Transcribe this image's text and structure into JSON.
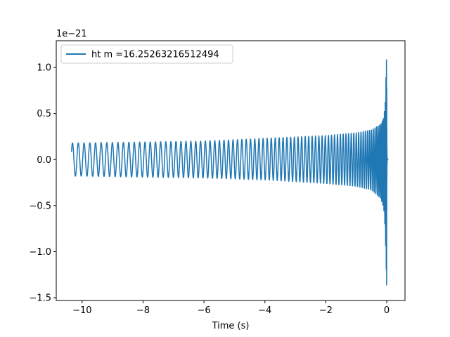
{
  "chart_data": {
    "type": "line",
    "title": "",
    "xlabel": "Time (s)",
    "ylabel": "",
    "y_scale_label": "1e−21",
    "xlim": [
      -10.85,
      0.6
    ],
    "ylim": [
      -1.53,
      1.29
    ],
    "x_ticks": [
      -10,
      -8,
      -6,
      -4,
      -2,
      0
    ],
    "x_tick_labels": [
      "−10",
      "−8",
      "−6",
      "−4",
      "−2",
      "0"
    ],
    "y_ticks": [
      -1.5,
      -1.0,
      -0.5,
      0.0,
      0.5,
      1.0
    ],
    "y_tick_labels": [
      "−1.5",
      "−1.0",
      "−0.5",
      "0.0",
      "0.5",
      "1.0"
    ],
    "legend_position": "upper-left",
    "grid": false,
    "series": [
      {
        "name": "ht m =16.25263216512494",
        "color": "#1f77b4",
        "x_start": -10.35,
        "x_merger": 0.0,
        "x_end": 0.05,
        "envelope_x": [
          -10.35,
          -10.0,
          -8.0,
          -6.0,
          -4.0,
          -2.0,
          -1.0,
          -0.5,
          -0.2,
          -0.1,
          -0.05,
          0.0
        ],
        "envelope_upper": [
          0.18,
          0.18,
          0.19,
          0.2,
          0.23,
          0.26,
          0.29,
          0.32,
          0.38,
          0.45,
          0.6,
          1.18
        ],
        "envelope_lower": [
          -0.18,
          -0.18,
          -0.19,
          -0.2,
          -0.22,
          -0.26,
          -0.29,
          -0.33,
          -0.42,
          -0.52,
          -0.75,
          -1.4
        ]
      }
    ]
  }
}
